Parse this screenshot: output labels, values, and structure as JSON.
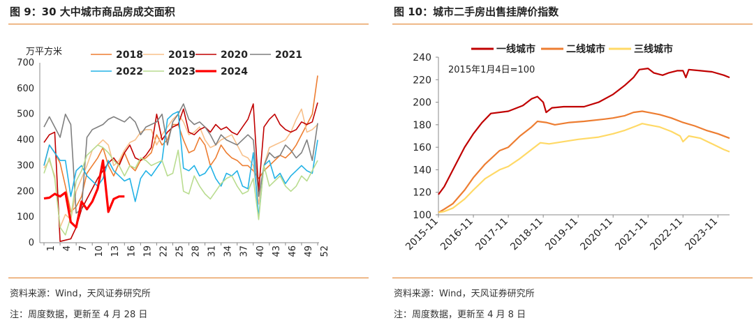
{
  "left": {
    "title": "图 9：30 大中城市商品房成交面积",
    "source": "资料来源：Wind，天风证券研究所",
    "note": "注：周度数据，更新至 4 月 28 日"
  },
  "right": {
    "title": "图 10：城市二手房出售挂牌价指数",
    "source": "资料来源：Wind，天风证券研究所",
    "note": "注：周度数据，更新至 4 月 8 日"
  },
  "chart_data": [
    {
      "type": "line",
      "title": "图 9：30 大中城市商品房成交面积",
      "ylabel": "万平方米",
      "ylim": [
        0,
        700
      ],
      "yticks": [
        0,
        100,
        200,
        300,
        400,
        500,
        600,
        700
      ],
      "xlim": [
        1,
        52
      ],
      "xticks": [
        1,
        4,
        7,
        10,
        13,
        16,
        19,
        22,
        25,
        28,
        31,
        34,
        37,
        40,
        43,
        46,
        49,
        52
      ],
      "legend_position": "top",
      "series": [
        {
          "name": "2018",
          "color": "#ed7d31",
          "width": 1.6,
          "values": [
            300,
            380,
            350,
            310,
            220,
            120,
            140,
            180,
            270,
            300,
            330,
            370,
            300,
            260,
            310,
            350,
            300,
            280,
            320,
            330,
            350,
            420,
            380,
            400,
            460,
            460,
            400,
            350,
            360,
            410,
            380,
            300,
            330,
            380,
            350,
            330,
            320,
            300,
            300,
            280,
            250,
            280,
            300,
            320,
            340,
            330,
            350,
            380,
            420,
            460,
            500,
            650
          ]
        },
        {
          "name": "2019",
          "color": "#f8c08a",
          "width": 1.6,
          "values": [
            290,
            320,
            260,
            60,
            110,
            90,
            200,
            250,
            300,
            360,
            380,
            400,
            380,
            300,
            320,
            360,
            390,
            400,
            430,
            440,
            440,
            380,
            420,
            450,
            480,
            500,
            470,
            420,
            430,
            450,
            400,
            370,
            380,
            400,
            410,
            420,
            380,
            340,
            330,
            300,
            150,
            300,
            370,
            380,
            390,
            400,
            430,
            480,
            520,
            430,
            440,
            460
          ]
        },
        {
          "name": "2020",
          "color": "#c00000",
          "width": 1.6,
          "values": [
            390,
            420,
            430,
            5,
            10,
            15,
            60,
            130,
            170,
            210,
            250,
            280,
            310,
            330,
            300,
            350,
            380,
            330,
            320,
            340,
            370,
            500,
            400,
            430,
            450,
            460,
            520,
            430,
            420,
            440,
            450,
            430,
            460,
            440,
            450,
            430,
            420,
            450,
            480,
            540,
            200,
            450,
            480,
            500,
            460,
            440,
            430,
            440,
            470,
            460,
            470,
            545
          ]
        },
        {
          "name": "2021",
          "color": "#7f7f7f",
          "width": 1.6,
          "values": [
            450,
            490,
            450,
            410,
            500,
            460,
            115,
            130,
            410,
            440,
            450,
            460,
            480,
            490,
            480,
            470,
            490,
            470,
            420,
            450,
            460,
            470,
            500,
            380,
            470,
            500,
            540,
            480,
            460,
            470,
            450,
            420,
            380,
            420,
            400,
            390,
            380,
            400,
            420,
            400,
            180,
            300,
            350,
            330,
            340,
            380,
            360,
            330,
            350,
            400,
            320,
            465
          ]
        },
        {
          "name": "2022",
          "color": "#22b2e6",
          "width": 1.6,
          "values": [
            300,
            380,
            350,
            320,
            320,
            180,
            280,
            300,
            260,
            240,
            220,
            250,
            320,
            280,
            260,
            240,
            250,
            160,
            250,
            280,
            260,
            290,
            320,
            480,
            500,
            510,
            290,
            280,
            300,
            260,
            270,
            300,
            250,
            220,
            270,
            260,
            280,
            220,
            210,
            350,
            100,
            300,
            320,
            250,
            270,
            230,
            260,
            280,
            300,
            280,
            270,
            400
          ]
        },
        {
          "name": "2023",
          "color": "#b9dc8f",
          "width": 1.6,
          "values": [
            270,
            330,
            250,
            60,
            30,
            100,
            240,
            280,
            340,
            360,
            380,
            370,
            350,
            320,
            300,
            260,
            300,
            290,
            330,
            320,
            300,
            310,
            320,
            260,
            270,
            360,
            200,
            190,
            260,
            220,
            190,
            170,
            200,
            230,
            250,
            260,
            220,
            190,
            200,
            250,
            90,
            300,
            220,
            240,
            260,
            220,
            200,
            220,
            260,
            240,
            280,
            320
          ]
        },
        {
          "name": "2024",
          "color": "#ff0000",
          "width": 3.2,
          "values": [
            172,
            175,
            190,
            180,
            195,
            80,
            60,
            160,
            130,
            160,
            210,
            320,
            120,
            170,
            180,
            180
          ]
        }
      ]
    },
    {
      "type": "line",
      "title": "图 10：城市二手房出售挂牌价指数",
      "annotation": "2015年1月4日=100",
      "ylim": [
        100,
        240
      ],
      "yticks": [
        100,
        120,
        140,
        160,
        180,
        200,
        220,
        240
      ],
      "x_unit": "month",
      "xlim": [
        "2015-11",
        "2024-03"
      ],
      "xticks": [
        "2015-11",
        "2016-11",
        "2017-11",
        "2018-11",
        "2019-11",
        "2020-11",
        "2021-11",
        "2022-11",
        "2023-11"
      ],
      "legend_position": "top",
      "series": [
        {
          "name": "一线城市",
          "color": "#c00000",
          "width": 2.2,
          "points": [
            [
              "2015-11",
              118
            ],
            [
              "2016-01",
              125
            ],
            [
              "2016-04",
              140
            ],
            [
              "2016-08",
              160
            ],
            [
              "2016-11",
              172
            ],
            [
              "2017-02",
              182
            ],
            [
              "2017-05",
              190
            ],
            [
              "2017-11",
              192
            ],
            [
              "2018-04",
              197
            ],
            [
              "2018-07",
              203
            ],
            [
              "2018-09",
              205
            ],
            [
              "2018-11",
              200
            ],
            [
              "2018-12",
              191
            ],
            [
              "2019-02",
              195
            ],
            [
              "2019-06",
              196
            ],
            [
              "2020-01",
              196
            ],
            [
              "2020-06",
              200
            ],
            [
              "2020-11",
              207
            ],
            [
              "2021-03",
              215
            ],
            [
              "2021-06",
              222
            ],
            [
              "2021-08",
              229
            ],
            [
              "2021-11",
              230
            ],
            [
              "2022-01",
              226
            ],
            [
              "2022-04",
              224
            ],
            [
              "2022-06",
              226
            ],
            [
              "2022-09",
              228
            ],
            [
              "2022-11",
              228
            ],
            [
              "2022-12",
              222
            ],
            [
              "2023-01",
              229
            ],
            [
              "2023-05",
              228
            ],
            [
              "2023-09",
              227
            ],
            [
              "2024-01",
              224
            ],
            [
              "2024-03",
              222
            ]
          ]
        },
        {
          "name": "二线城市",
          "color": "#ed7d31",
          "width": 2.2,
          "points": [
            [
              "2015-11",
              102
            ],
            [
              "2016-01",
              105
            ],
            [
              "2016-04",
              110
            ],
            [
              "2016-08",
              122
            ],
            [
              "2016-11",
              133
            ],
            [
              "2017-03",
              145
            ],
            [
              "2017-08",
              157
            ],
            [
              "2017-11",
              160
            ],
            [
              "2018-03",
              170
            ],
            [
              "2018-07",
              178
            ],
            [
              "2018-09",
              183
            ],
            [
              "2018-12",
              182
            ],
            [
              "2019-03",
              180
            ],
            [
              "2019-08",
              182
            ],
            [
              "2020-01",
              183
            ],
            [
              "2020-08",
              185
            ],
            [
              "2020-11",
              186
            ],
            [
              "2021-03",
              188
            ],
            [
              "2021-06",
              191
            ],
            [
              "2021-09",
              192
            ],
            [
              "2021-11",
              191
            ],
            [
              "2022-03",
              189
            ],
            [
              "2022-07",
              186
            ],
            [
              "2022-11",
              182
            ],
            [
              "2023-03",
              179
            ],
            [
              "2023-07",
              175
            ],
            [
              "2023-11",
              172
            ],
            [
              "2024-03",
              168
            ]
          ]
        },
        {
          "name": "三线城市",
          "color": "#ffd966",
          "width": 2.2,
          "points": [
            [
              "2015-11",
              102
            ],
            [
              "2016-01",
              103
            ],
            [
              "2016-04",
              106
            ],
            [
              "2016-08",
              114
            ],
            [
              "2016-11",
              122
            ],
            [
              "2017-03",
              132
            ],
            [
              "2017-08",
              140
            ],
            [
              "2017-11",
              143
            ],
            [
              "2018-03",
              150
            ],
            [
              "2018-07",
              158
            ],
            [
              "2018-10",
              164
            ],
            [
              "2019-01",
              163
            ],
            [
              "2019-06",
              165
            ],
            [
              "2019-11",
              167
            ],
            [
              "2020-06",
              169
            ],
            [
              "2020-11",
              172
            ],
            [
              "2021-03",
              175
            ],
            [
              "2021-07",
              179
            ],
            [
              "2021-09",
              181
            ],
            [
              "2021-11",
              180
            ],
            [
              "2022-03",
              178
            ],
            [
              "2022-07",
              174
            ],
            [
              "2022-10",
              170
            ],
            [
              "2022-11",
              165
            ],
            [
              "2023-01",
              170
            ],
            [
              "2023-05",
              168
            ],
            [
              "2023-09",
              163
            ],
            [
              "2024-01",
              158
            ],
            [
              "2024-03",
              156
            ]
          ]
        }
      ]
    }
  ]
}
